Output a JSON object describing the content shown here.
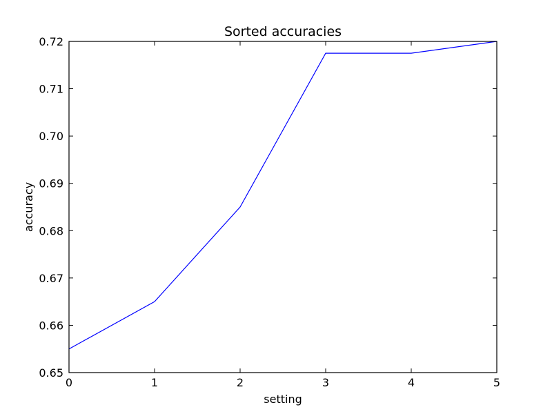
{
  "chart_data": {
    "type": "line",
    "title": "Sorted accuracies",
    "xlabel": "setting",
    "ylabel": "accuracy",
    "xlim": [
      0,
      5
    ],
    "ylim": [
      0.65,
      0.72
    ],
    "xticks": [
      "0",
      "1",
      "2",
      "3",
      "4",
      "5"
    ],
    "yticks": [
      "0.65",
      "0.66",
      "0.67",
      "0.68",
      "0.69",
      "0.70",
      "0.71",
      "0.72"
    ],
    "grid": false,
    "series": [
      {
        "color": "#0000ff",
        "x": [
          0,
          1,
          2,
          3,
          4,
          5
        ],
        "y": [
          0.655,
          0.665,
          0.685,
          0.7175,
          0.7175,
          0.72
        ]
      }
    ]
  }
}
